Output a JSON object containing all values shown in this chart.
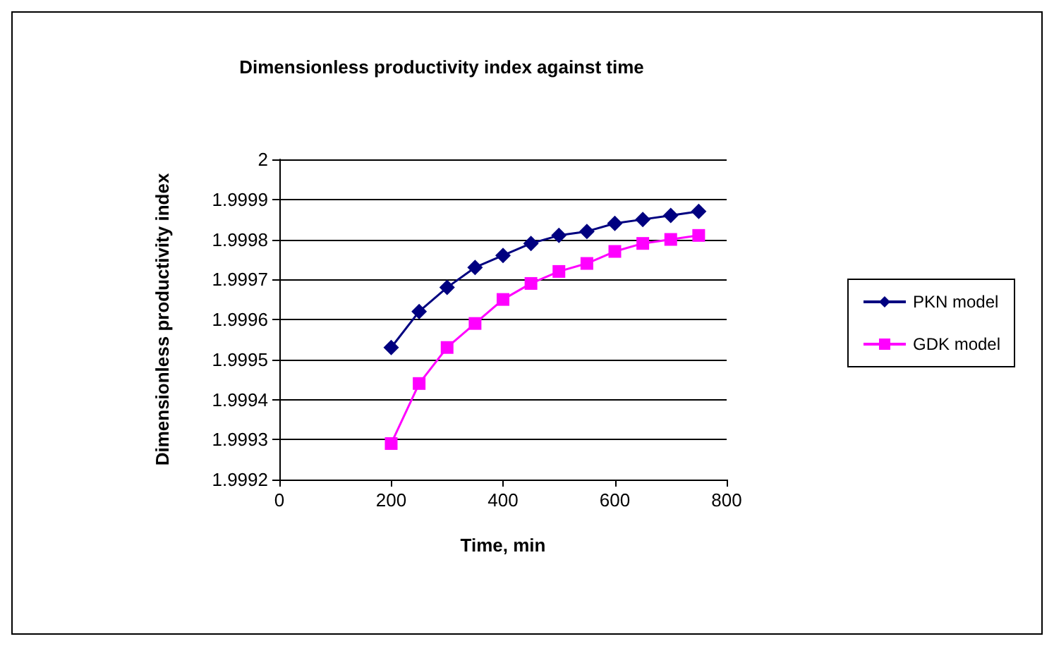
{
  "chart_data": {
    "type": "line",
    "title": "Dimensionless productivity index against time",
    "xlabel": "Time, min",
    "ylabel": "Dimensionless productivity index",
    "x": [
      200,
      250,
      300,
      350,
      400,
      450,
      500,
      550,
      600,
      650,
      700,
      750
    ],
    "series": [
      {
        "name": "PKN model",
        "color": "#000080",
        "marker": "diamond",
        "values": [
          1.99953,
          1.99962,
          1.99968,
          1.99973,
          1.99976,
          1.99979,
          1.99981,
          1.99982,
          1.99984,
          1.99985,
          1.99986,
          1.99987
        ]
      },
      {
        "name": "GDK model",
        "color": "#ff00ff",
        "marker": "square",
        "values": [
          1.99929,
          1.99944,
          1.99953,
          1.99959,
          1.99965,
          1.99969,
          1.99972,
          1.99974,
          1.99977,
          1.99979,
          1.9998,
          1.99981
        ]
      }
    ],
    "xlim": [
      0,
      800
    ],
    "xticks": [
      0,
      200,
      400,
      600,
      800
    ],
    "ylim": [
      1.9992,
      2
    ],
    "yticks": [
      1.9992,
      1.9993,
      1.9994,
      1.9995,
      1.9996,
      1.9997,
      1.9998,
      1.9999,
      2
    ],
    "grid": "y",
    "legend": "right"
  }
}
